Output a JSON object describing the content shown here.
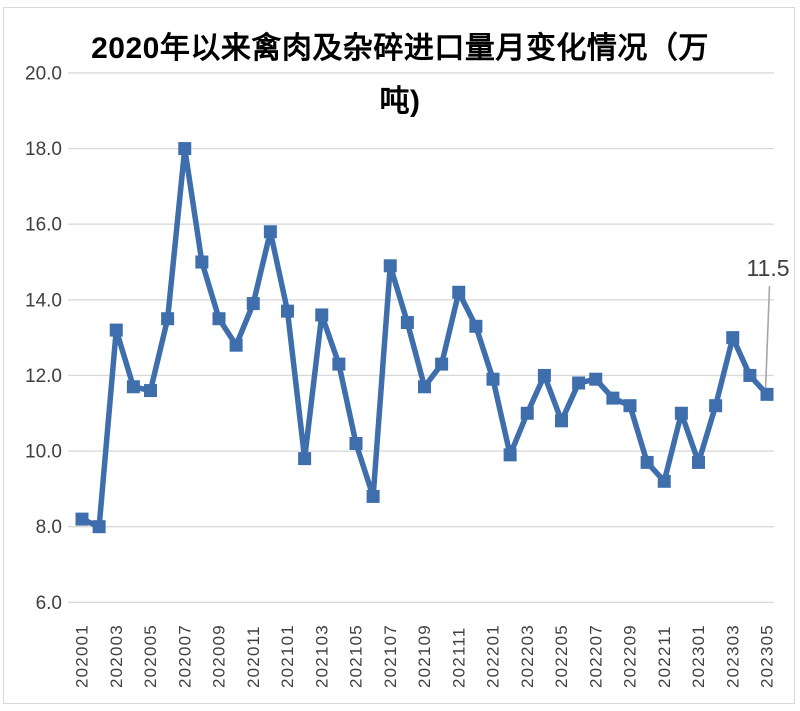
{
  "window": {
    "background": "#ffffff",
    "border_color": "#d9d9d9"
  },
  "chart_data": {
    "type": "line",
    "title": "2020年以来禽肉及杂碎进口量月变化情况（万吨)",
    "title_lines": [
      "2020年以来禽肉及杂碎进口量月变化情况（万",
      "吨)"
    ],
    "x": [
      "202001",
      "202002",
      "202003",
      "202004",
      "202005",
      "202006",
      "202007",
      "202008",
      "202009",
      "202010",
      "202011",
      "202012",
      "202101",
      "202102",
      "202103",
      "202104",
      "202105",
      "202106",
      "202107",
      "202108",
      "202109",
      "202110",
      "202111",
      "202112",
      "202201",
      "202202",
      "202203",
      "202204",
      "202205",
      "202206",
      "202207",
      "202208",
      "202209",
      "202210",
      "202211",
      "202212",
      "202301",
      "202302",
      "202303",
      "202304",
      "202305"
    ],
    "values": [
      8.2,
      8.0,
      13.2,
      11.7,
      11.6,
      13.5,
      18.0,
      15.0,
      13.5,
      12.8,
      13.9,
      15.8,
      13.7,
      9.8,
      13.6,
      12.3,
      10.2,
      8.8,
      14.9,
      13.4,
      11.7,
      12.3,
      14.2,
      13.3,
      11.9,
      9.9,
      11.0,
      12.0,
      10.8,
      11.8,
      11.9,
      11.4,
      11.2,
      9.7,
      9.2,
      11.0,
      9.7,
      11.2,
      13.0,
      12.0,
      11.5
    ],
    "x_tick_labels": [
      "202001",
      "202003",
      "202005",
      "202007",
      "202009",
      "202011",
      "202101",
      "202103",
      "202105",
      "202107",
      "202109",
      "202111",
      "202201",
      "202203",
      "202205",
      "202207",
      "202209",
      "202211",
      "202301",
      "202303",
      "202305"
    ],
    "x_tick_every": 2,
    "ytick_labels": [
      "6.0",
      "8.0",
      "10.0",
      "12.0",
      "14.0",
      "16.0",
      "18.0",
      "20.0"
    ],
    "ylim": [
      6.0,
      20.0
    ],
    "ytick_step": 2.0,
    "xlabel": "",
    "ylabel": "",
    "grid": "horizontal",
    "legend": "none",
    "marker": "square",
    "line_color": "#3E6EAB",
    "gridline_color": "#D9D9D9",
    "tick_label_color": "#3F3F3F",
    "annotation": {
      "label": "11.5",
      "x": "202305",
      "text_color": "#404040",
      "leader_color": "#A6A6A6"
    }
  }
}
